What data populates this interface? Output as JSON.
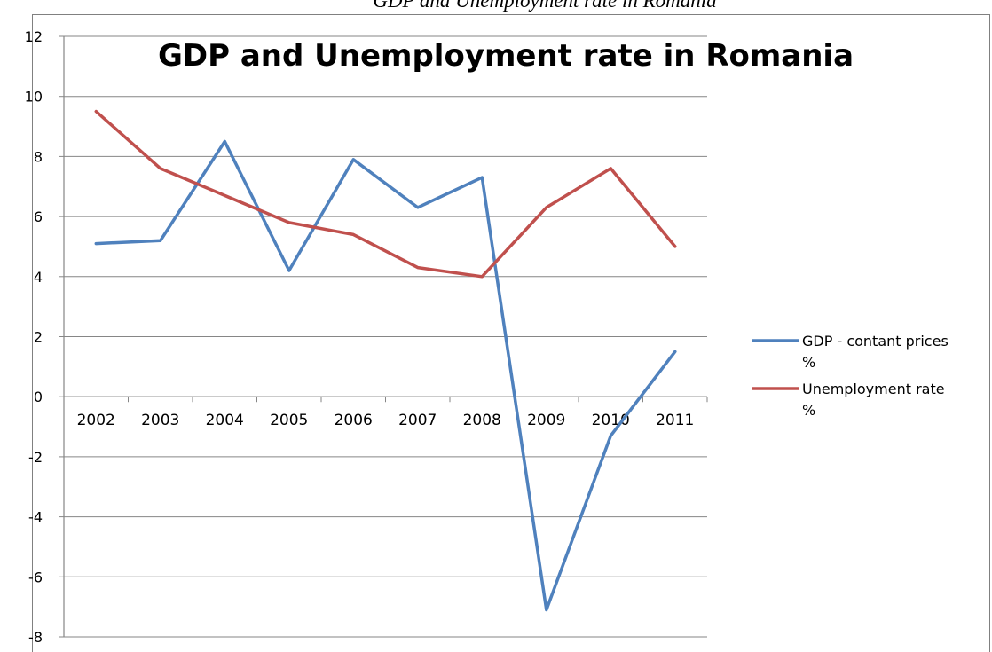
{
  "figure_caption": "GDP and Unemployment rate in Romania",
  "chart_data": {
    "type": "line",
    "title": "GDP and Unemployment rate in Romania",
    "xlabel": "",
    "ylabel": "",
    "categories": [
      "2002",
      "2003",
      "2004",
      "2005",
      "2006",
      "2007",
      "2008",
      "2009",
      "2010",
      "2011"
    ],
    "ylim": [
      -8,
      12
    ],
    "yticks": [
      "12",
      "10",
      "8",
      "6",
      "4",
      "2",
      "0",
      "-2",
      "-4",
      "-6",
      "-8"
    ],
    "grid": true,
    "legend_position": "right",
    "series": [
      {
        "name": "GDP - contant prices %",
        "legend_line1": "GDP - contant prices",
        "legend_line2": "%",
        "color": "#4F81BD",
        "values": [
          5.1,
          5.2,
          8.5,
          4.2,
          7.9,
          6.3,
          7.3,
          -7.1,
          -1.3,
          1.5
        ]
      },
      {
        "name": "Unemployment rate %",
        "legend_line1": "Unemployment rate",
        "legend_line2": "%",
        "color": "#C0504D",
        "values": [
          9.5,
          7.6,
          6.7,
          5.8,
          5.4,
          4.3,
          4.0,
          6.3,
          7.6,
          5.0
        ]
      }
    ]
  }
}
